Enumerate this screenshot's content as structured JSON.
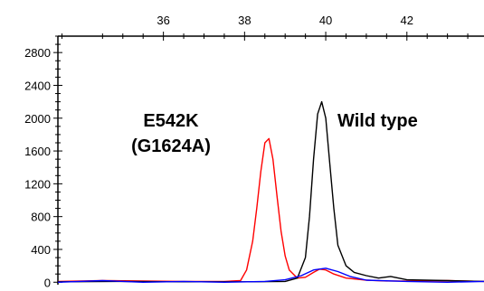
{
  "chart_data": {
    "type": "line",
    "title": "",
    "xlabel": "",
    "ylabel": "",
    "xlim": [
      33.4,
      43.9
    ],
    "ylim": [
      -30,
      3000
    ],
    "x_ticks": [
      "36",
      "38",
      "40",
      "42"
    ],
    "y_ticks": [
      "0",
      "400",
      "800",
      "1200",
      "1600",
      "2000",
      "2400",
      "2800"
    ],
    "grid": false,
    "legend": "none",
    "annotations": {
      "mutant_line1": "E542K",
      "mutant_line2": "(G1624A)",
      "wild": "Wild type"
    },
    "series": [
      {
        "color": "#ff0000",
        "x": [
          33.4,
          34.5,
          35.5,
          36.5,
          37.5,
          37.9,
          38.05,
          38.2,
          38.3,
          38.4,
          38.5,
          38.6,
          38.7,
          38.8,
          38.9,
          39.0,
          39.1,
          39.3,
          39.5,
          39.7,
          39.85,
          40.0,
          40.2,
          40.5,
          41.0,
          41.5,
          42.0,
          43.0,
          43.9
        ],
        "y": [
          10,
          20,
          15,
          10,
          10,
          20,
          150,
          500,
          900,
          1350,
          1700,
          1750,
          1500,
          1050,
          620,
          320,
          150,
          50,
          60,
          120,
          160,
          150,
          100,
          50,
          25,
          15,
          15,
          20,
          10
        ]
      },
      {
        "color": "#000000",
        "x": [
          33.4,
          35.0,
          36.5,
          38.0,
          39.0,
          39.3,
          39.5,
          39.6,
          39.7,
          39.8,
          39.9,
          40.0,
          40.1,
          40.2,
          40.3,
          40.5,
          40.7,
          41.0,
          41.3,
          41.6,
          42.0,
          43.0,
          43.9
        ],
        "y": [
          5,
          10,
          5,
          5,
          10,
          50,
          300,
          800,
          1500,
          2050,
          2200,
          2000,
          1450,
          900,
          450,
          200,
          120,
          80,
          50,
          70,
          30,
          20,
          10
        ]
      },
      {
        "color": "#0000ff",
        "x": [
          33.4,
          34.5,
          35.5,
          36.5,
          37.5,
          38.5,
          39.0,
          39.4,
          39.7,
          40.0,
          40.3,
          40.6,
          41.0,
          42.0,
          43.0,
          43.9
        ],
        "y": [
          0,
          20,
          0,
          10,
          0,
          10,
          30,
          80,
          150,
          170,
          130,
          70,
          25,
          10,
          0,
          10
        ]
      }
    ]
  }
}
